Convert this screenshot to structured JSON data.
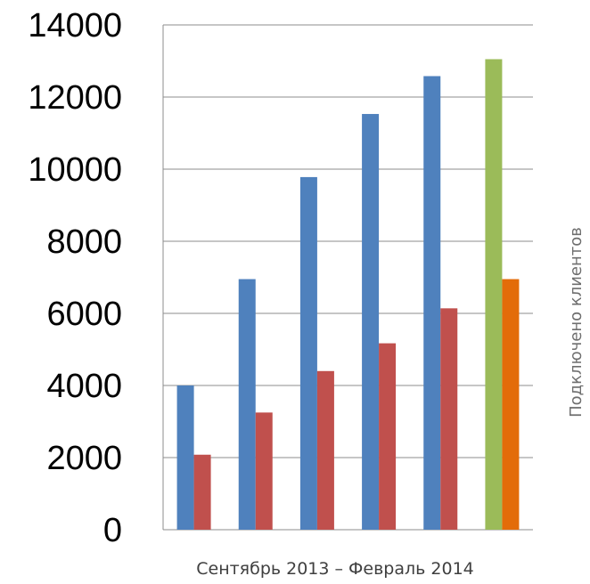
{
  "chart_data": {
    "type": "bar",
    "xlabel": "Сентябрь 2013 – Февраль 2014",
    "ylabel": "Подключено клиентов",
    "ylim": [
      0,
      14000
    ],
    "yticks": [
      "0",
      "2000",
      "4000",
      "6000",
      "8000",
      "10000",
      "12000",
      "14000"
    ],
    "grid": true,
    "categories": [
      "",
      "",
      "",
      "",
      "",
      ""
    ],
    "series": [
      {
        "values": [
          4000,
          6950,
          9780,
          11530,
          12580,
          13050
        ]
      },
      {
        "values": [
          2080,
          3250,
          4400,
          5170,
          6140,
          6950
        ]
      }
    ],
    "colors": {
      "series0": "#4f81bd",
      "series1": "#c0504d",
      "highlight0": "#9bbb59",
      "highlight1": "#e36c09"
    }
  }
}
